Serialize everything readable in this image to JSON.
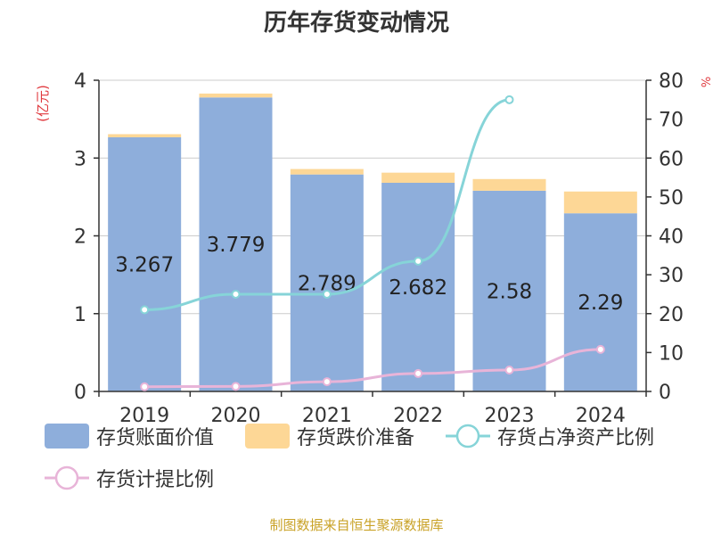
{
  "chart_data": {
    "type": "bar",
    "title": "历年存货变动情况",
    "categories": [
      "2019",
      "2020",
      "2021",
      "2022",
      "2023",
      "2024"
    ],
    "y_left": {
      "label": "(亿元)",
      "ylim": [
        0,
        4
      ],
      "ticks": [
        0,
        1,
        2,
        3,
        4
      ]
    },
    "y_right": {
      "label": "%",
      "ylim": [
        0,
        80
      ],
      "ticks": [
        0,
        10,
        20,
        30,
        40,
        50,
        60,
        70,
        80
      ]
    },
    "series": [
      {
        "name": "存货账面价值",
        "type": "bar",
        "stack": "inv",
        "axis": "left",
        "values": [
          3.267,
          3.779,
          2.789,
          2.682,
          2.58,
          2.29
        ],
        "labels": [
          "3.267",
          "3.779",
          "2.789",
          "2.682",
          "2.58",
          "2.29"
        ]
      },
      {
        "name": "存货跌价准备",
        "type": "bar",
        "stack": "inv",
        "axis": "left",
        "values": [
          0.04,
          0.05,
          0.07,
          0.13,
          0.15,
          0.28
        ]
      },
      {
        "name": "存货占净资产比例",
        "type": "line",
        "axis": "right",
        "values": [
          21,
          25,
          25,
          33.5,
          75,
          null
        ]
      },
      {
        "name": "存货计提比例",
        "type": "line",
        "axis": "right",
        "values": [
          1.2,
          1.3,
          2.5,
          4.6,
          5.5,
          10.8
        ]
      }
    ],
    "grid": true,
    "legend_position": "bottom"
  },
  "colors": {
    "bar_value": "#8eaedb",
    "bar_reserve": "#fdd796",
    "line_ratio_net": "#86d4d8",
    "line_provision": "#e8b4d8",
    "title": "#333333",
    "axis_label": "#e0393e",
    "footer": "#c9a227"
  },
  "footer": "制图数据来自恒生聚源数据库"
}
